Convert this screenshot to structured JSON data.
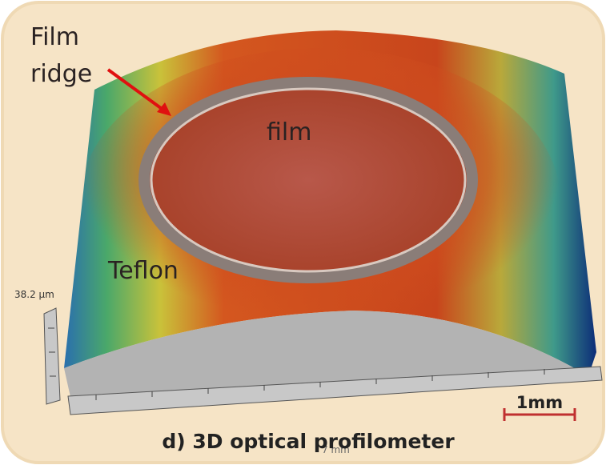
{
  "annotations": [
    "Film",
    "ridge",
    "film",
    "Teflon"
  ],
  "axis": {
    "height_label": "38.2 µm",
    "length_label": "7 mm"
  },
  "scale_bar": "1mm",
  "caption": "d) 3D optical profilometer"
}
